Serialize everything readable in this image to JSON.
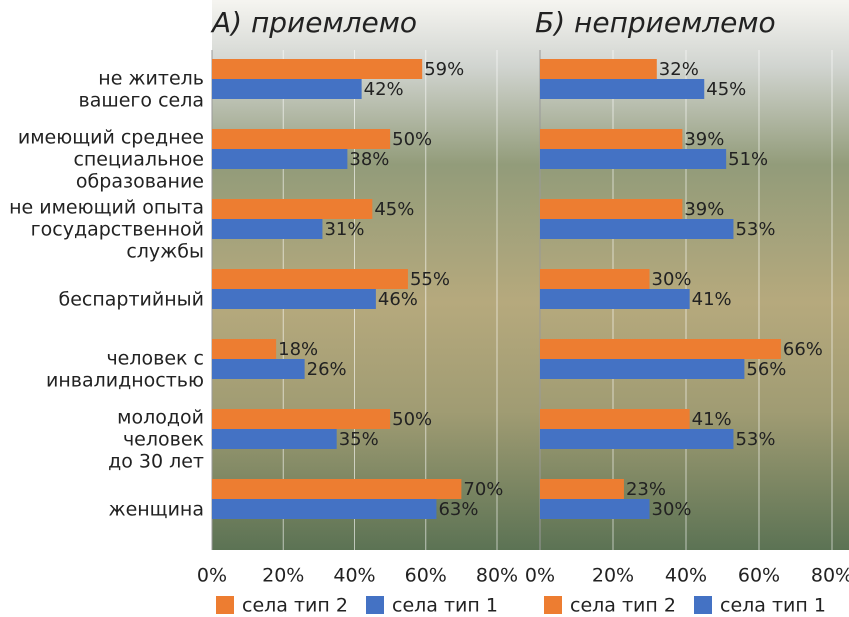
{
  "chart_data": [
    {
      "type": "bar",
      "title": "А) приемлемо",
      "categories": [
        [
          "не житель",
          "вашего села"
        ],
        [
          "имеющий  среднее",
          "специальное",
          "образование"
        ],
        [
          "не имеющий опыта",
          "государственной",
          "службы"
        ],
        [
          "беспартийный"
        ],
        [
          "человек с",
          "инвалидностью"
        ],
        [
          "молодой",
          "человек",
          "до 30 лет"
        ],
        [
          "женщина"
        ]
      ],
      "series": [
        {
          "name": "села тип 2",
          "color": "#ed7d31",
          "values": [
            59,
            50,
            45,
            55,
            18,
            50,
            70
          ],
          "value_labels": [
            "59%",
            "50%",
            "45%",
            "55%",
            "18%",
            "50%",
            "70%"
          ]
        },
        {
          "name": "села тип 1",
          "color": "#4472c4",
          "values": [
            42,
            38,
            31,
            46,
            26,
            35,
            63
          ],
          "value_labels": [
            "42%",
            "38%",
            "31%",
            "46%",
            "26%",
            "35%",
            "63%"
          ]
        }
      ],
      "xlim": [
        0,
        80
      ],
      "xticks": [
        {
          "value": 0,
          "label": "0%"
        },
        {
          "value": 20,
          "label": "20%"
        },
        {
          "value": 40,
          "label": "40%"
        },
        {
          "value": 60,
          "label": "60%"
        },
        {
          "value": 80,
          "label": "80%"
        }
      ],
      "grid": true
    },
    {
      "type": "bar",
      "title": "Б) неприемлемо",
      "series": [
        {
          "name": "села тип 2",
          "color": "#ed7d31",
          "values": [
            32,
            39,
            39,
            30,
            66,
            41,
            23
          ],
          "value_labels": [
            "32%",
            "39%",
            "39%",
            "30%",
            "66%",
            "41%",
            "23%"
          ]
        },
        {
          "name": "села тип 1",
          "color": "#4472c4",
          "values": [
            45,
            51,
            53,
            41,
            56,
            53,
            30
          ],
          "value_labels": [
            "45%",
            "51%",
            "53%",
            "41%",
            "56%",
            "53%",
            "30%"
          ]
        }
      ],
      "xlim": [
        0,
        80
      ],
      "xticks": [
        {
          "value": 0,
          "label": "0%"
        },
        {
          "value": 20,
          "label": "20%"
        },
        {
          "value": 40,
          "label": "40%"
        },
        {
          "value": 60,
          "label": "60%"
        },
        {
          "value": 80,
          "label": "80%"
        }
      ],
      "grid": true
    }
  ]
}
